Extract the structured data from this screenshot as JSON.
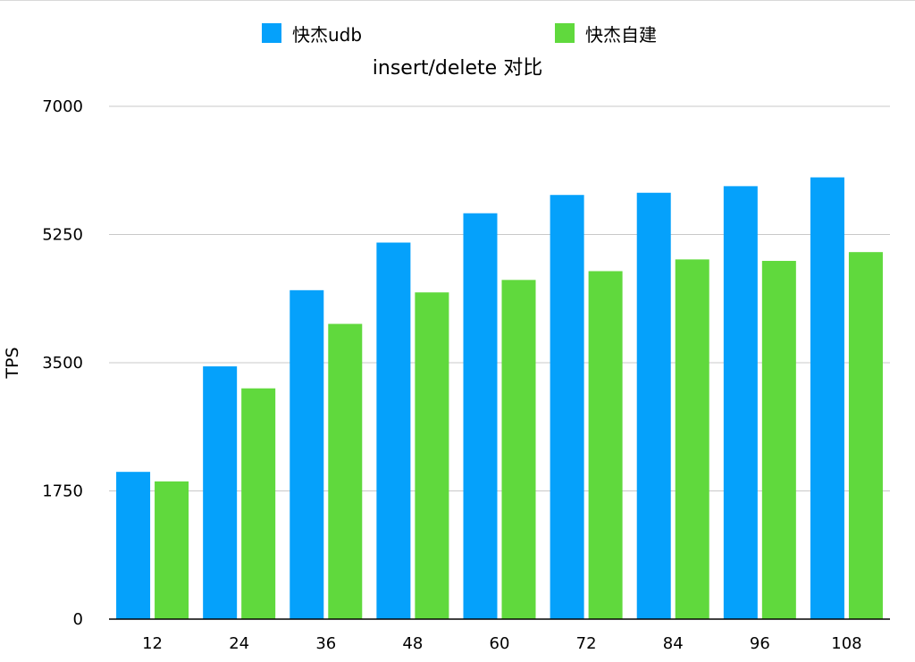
{
  "chart_data": {
    "type": "bar",
    "title": "insert/delete 对比",
    "xlabel": "",
    "ylabel": "TPS",
    "ylim": [
      0,
      7000
    ],
    "yticks": [
      0,
      1750,
      3500,
      5250,
      7000
    ],
    "categories": [
      "12",
      "24",
      "36",
      "48",
      "60",
      "72",
      "84",
      "96",
      "108"
    ],
    "series": [
      {
        "name": "快杰udb",
        "color": "#05a1fb",
        "values": [
          2010,
          3450,
          4490,
          5140,
          5540,
          5790,
          5820,
          5910,
          6030
        ]
      },
      {
        "name": "快杰自建",
        "color": "#60d93d",
        "values": [
          1880,
          3150,
          4030,
          4460,
          4630,
          4750,
          4910,
          4890,
          5010
        ]
      }
    ],
    "grid": true,
    "legend_position": "top"
  }
}
